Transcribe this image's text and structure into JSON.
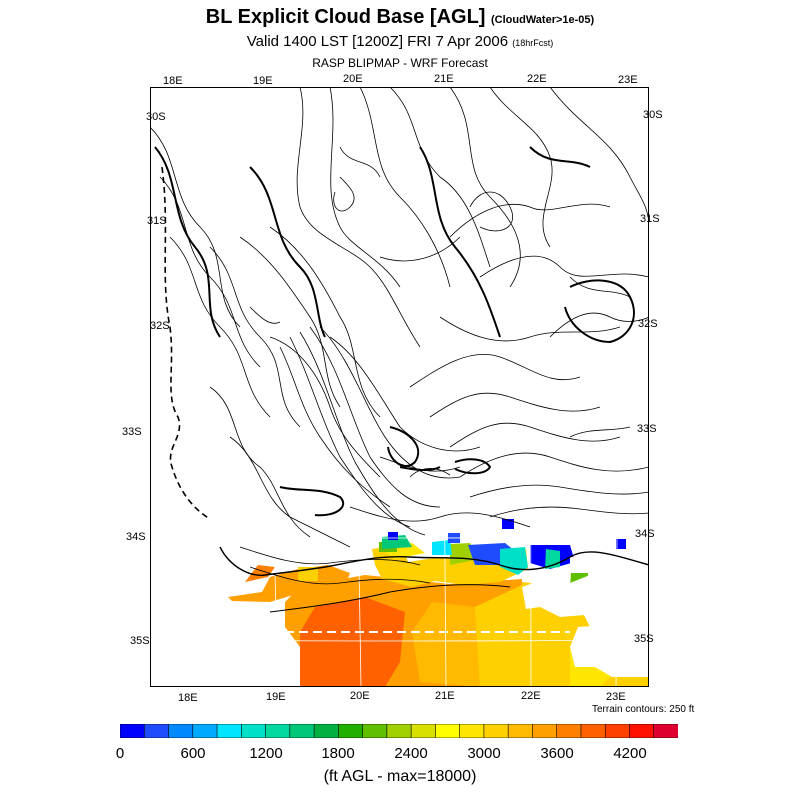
{
  "header": {
    "title": "BL Explicit Cloud Base [AGL]",
    "title_note": "(CloudWater>1e-05)",
    "valid": "Valid 1400 LST [1200Z] FRI 7 Apr 2006",
    "valid_note": "(18hrFcst)",
    "source": "RASP BLIPMAP - WRF Forecast"
  },
  "map": {
    "lon_labels_top": [
      "18E",
      "19E",
      "20E",
      "21E",
      "22E",
      "23E"
    ],
    "lon_labels_bottom": [
      "18E",
      "19E",
      "20E",
      "21E",
      "22E",
      "23E"
    ],
    "lat_labels_left": [
      "30S",
      "31S",
      "32S",
      "33S",
      "34S",
      "35S"
    ],
    "lat_labels_right": [
      "30S",
      "31S",
      "32S",
      "33S",
      "34S",
      "35S"
    ],
    "terrain_note": "Terrain contours: 250 ft"
  },
  "colorbar": {
    "colors": [
      "#0000ff",
      "#1f4cff",
      "#0088ff",
      "#00aaff",
      "#00e5ff",
      "#00e0c8",
      "#00d8a0",
      "#00c878",
      "#00b040",
      "#22b000",
      "#60c000",
      "#a0d000",
      "#d8e000",
      "#ffff00",
      "#ffe600",
      "#ffd000",
      "#ffba00",
      "#ffa000",
      "#ff8000",
      "#ff6000",
      "#ff4000",
      "#ff1000",
      "#e00030"
    ],
    "labels": [
      "0",
      "600",
      "1200",
      "1800",
      "2400",
      "3000",
      "3600",
      "4200"
    ],
    "units": "(ft AGL - max=18000)"
  }
}
